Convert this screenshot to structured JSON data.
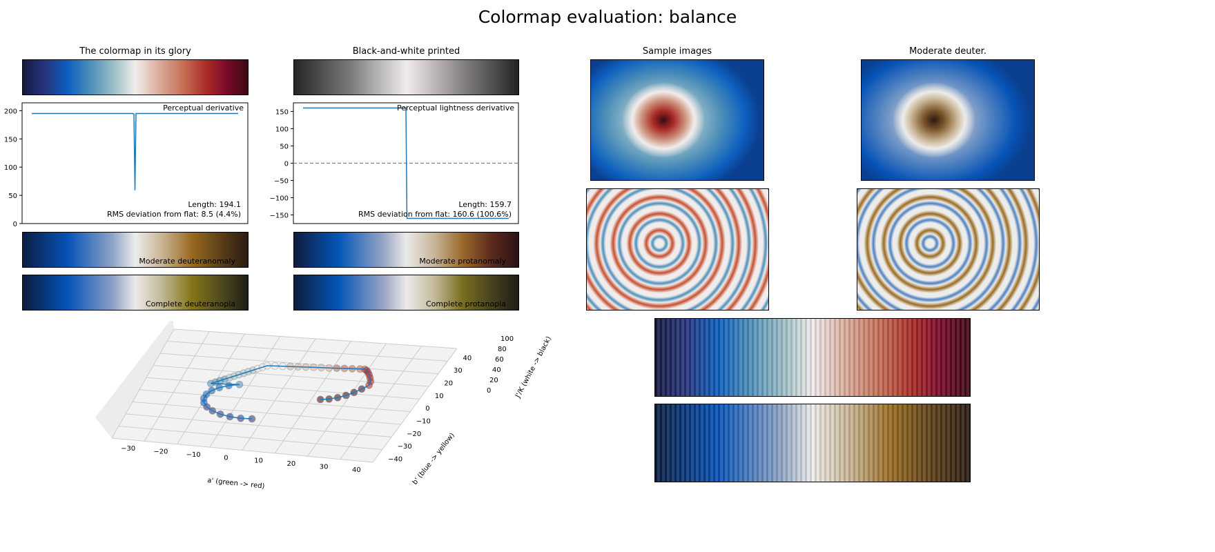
{
  "title": "Colormap evaluation: balance",
  "panels": {
    "glory": "The colormap in its glory",
    "bw": "Black-and-white printed",
    "samples": "Sample images",
    "deuter": "Moderate deuter.",
    "mod_deu": "Moderate deuteranomaly",
    "mod_pro": "Moderate protanomaly",
    "comp_deu": "Complete deuteranopia",
    "comp_pro": "Complete protanopia"
  },
  "colors": {
    "line": "#1f77b4",
    "zero_line": "#808080"
  },
  "chart_data": [
    {
      "type": "line",
      "title": "Perceptual derivative",
      "ylim": [
        0,
        214
      ],
      "yticks": [
        "0",
        "50",
        "100",
        "150",
        "200"
      ],
      "x": [
        0,
        0.49,
        0.495,
        0.5,
        0.505,
        1
      ],
      "values": [
        195,
        195,
        194,
        59,
        195,
        195
      ],
      "annotations": [
        "Length: 194.1",
        "RMS deviation from flat: 8.5 (4.4%)"
      ]
    },
    {
      "type": "line",
      "title": "Perceptual lightness derivative",
      "ylim": [
        -175,
        175
      ],
      "yticks": [
        "150",
        "100",
        "50",
        "0",
        "−50",
        "−100",
        "−150"
      ],
      "ytick_values": [
        150,
        100,
        50,
        0,
        -50,
        -100,
        -150
      ],
      "x": [
        0,
        0.5,
        0.505,
        1
      ],
      "values": [
        160,
        160,
        -160,
        -160
      ],
      "reference_line": 0,
      "annotations": [
        "Length: 159.7",
        "RMS deviation from flat: 160.6 (100.6%)"
      ]
    },
    {
      "type": "scatter3d",
      "xlabel": "a' (green -> red)",
      "ylabel": "b' (blue -> yellow)",
      "zlabel": "J'/K (white -> black)",
      "xticks": [
        "−30",
        "−20",
        "−10",
        "0",
        "10",
        "20",
        "30",
        "40"
      ],
      "yticks": [
        "−40",
        "−30",
        "−20",
        "−10",
        "0",
        "10",
        "20",
        "30",
        "40"
      ],
      "zticks": [
        "0",
        "20",
        "40",
        "60",
        "80",
        "100"
      ]
    }
  ]
}
